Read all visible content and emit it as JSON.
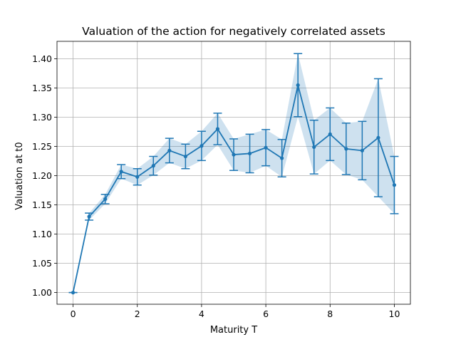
{
  "chart_data": {
    "type": "line",
    "title": "Valuation of the action for negatively correlated assets",
    "xlabel": "Maturity T",
    "ylabel": "Valuation at t0",
    "xlim": [
      -0.5,
      10.5
    ],
    "ylim": [
      0.98,
      1.43
    ],
    "xticks": [
      0,
      2,
      4,
      6,
      8,
      10
    ],
    "yticks": [
      1.0,
      1.05,
      1.1,
      1.15,
      1.2,
      1.25,
      1.3,
      1.35,
      1.4
    ],
    "grid": true,
    "color": "#1f77b4",
    "band_color": "#1f77b4",
    "series": [
      {
        "x": [
          0,
          0.5,
          1,
          1.5,
          2,
          2.5,
          3,
          3.5,
          4,
          4.5,
          5,
          5.5,
          6,
          6.5,
          7,
          7.5,
          8,
          8.5,
          9,
          9.5,
          10
        ],
        "y": [
          1.0,
          1.13,
          1.16,
          1.207,
          1.198,
          1.217,
          1.243,
          1.233,
          1.251,
          1.28,
          1.236,
          1.238,
          1.248,
          1.23,
          1.355,
          1.249,
          1.271,
          1.246,
          1.243,
          1.265,
          1.184
        ],
        "yerr": [
          0.0,
          0.006,
          0.008,
          0.012,
          0.014,
          0.016,
          0.021,
          0.021,
          0.025,
          0.027,
          0.027,
          0.033,
          0.031,
          0.032,
          0.054,
          0.046,
          0.045,
          0.044,
          0.05,
          0.101,
          0.049
        ]
      }
    ]
  }
}
